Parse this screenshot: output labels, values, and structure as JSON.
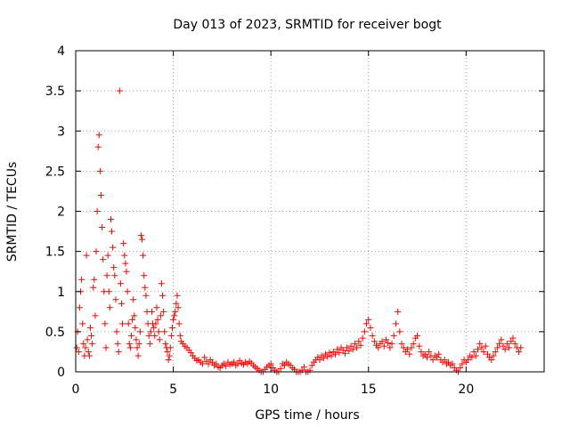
{
  "chart_data": {
    "type": "scatter",
    "title": "Day 013 of 2023, SRMTID for receiver bogt",
    "xlabel": "GPS time / hours",
    "ylabel": "SRMTID / TECUs",
    "xlim": [
      0,
      24
    ],
    "ylim": [
      0,
      4
    ],
    "xticks": [
      0,
      5,
      10,
      15,
      20
    ],
    "xtick_labels": [
      "0",
      "5",
      "10",
      "15",
      "20"
    ],
    "yticks": [
      0,
      0.5,
      1,
      1.5,
      2,
      2.5,
      3,
      3.5,
      4
    ],
    "ytick_labels": [
      "0",
      "0.5",
      "1",
      "1.5",
      "2",
      "2.5",
      "3",
      "3.5",
      "4"
    ],
    "grid": true,
    "marker": "+",
    "color": "#ff0000",
    "series": [
      {
        "name": "SRMTID",
        "points": [
          [
            0.05,
            0.3
          ],
          [
            0.1,
            0.5
          ],
          [
            0.15,
            0.25
          ],
          [
            0.2,
            0.8
          ],
          [
            0.25,
            1.0
          ],
          [
            0.3,
            1.15
          ],
          [
            0.35,
            0.6
          ],
          [
            0.4,
            0.35
          ],
          [
            0.45,
            0.2
          ],
          [
            0.5,
            0.3
          ],
          [
            0.55,
            1.45
          ],
          [
            0.6,
            0.4
          ],
          [
            0.65,
            0.25
          ],
          [
            0.7,
            0.2
          ],
          [
            0.75,
            0.55
          ],
          [
            0.8,
            0.45
          ],
          [
            0.85,
            0.35
          ],
          [
            0.9,
            1.05
          ],
          [
            0.95,
            1.15
          ],
          [
            1.0,
            0.7
          ],
          [
            1.05,
            1.5
          ],
          [
            1.1,
            2.0
          ],
          [
            1.15,
            2.8
          ],
          [
            1.2,
            2.95
          ],
          [
            1.25,
            2.5
          ],
          [
            1.3,
            2.2
          ],
          [
            1.35,
            1.8
          ],
          [
            1.4,
            1.4
          ],
          [
            1.45,
            1.0
          ],
          [
            1.5,
            0.6
          ],
          [
            1.55,
            0.3
          ],
          [
            1.6,
            1.2
          ],
          [
            1.65,
            1.45
          ],
          [
            1.7,
            1.0
          ],
          [
            1.75,
            0.8
          ],
          [
            1.8,
            1.9
          ],
          [
            1.85,
            1.75
          ],
          [
            1.9,
            1.55
          ],
          [
            1.95,
            1.3
          ],
          [
            2.0,
            1.2
          ],
          [
            2.05,
            0.9
          ],
          [
            2.1,
            0.5
          ],
          [
            2.15,
            0.35
          ],
          [
            2.2,
            0.25
          ],
          [
            2.25,
            3.5
          ],
          [
            2.3,
            1.1
          ],
          [
            2.35,
            0.85
          ],
          [
            2.4,
            0.6
          ],
          [
            2.45,
            1.6
          ],
          [
            2.5,
            1.45
          ],
          [
            2.55,
            1.35
          ],
          [
            2.6,
            1.25
          ],
          [
            2.65,
            1.0
          ],
          [
            2.7,
            0.6
          ],
          [
            2.75,
            0.35
          ],
          [
            2.8,
            0.3
          ],
          [
            2.85,
            0.45
          ],
          [
            2.9,
            0.65
          ],
          [
            2.95,
            0.9
          ],
          [
            3.0,
            0.7
          ],
          [
            3.05,
            0.55
          ],
          [
            3.1,
            0.4
          ],
          [
            3.15,
            0.3
          ],
          [
            3.2,
            0.2
          ],
          [
            3.25,
            0.35
          ],
          [
            3.3,
            0.5
          ],
          [
            3.35,
            1.7
          ],
          [
            3.4,
            1.65
          ],
          [
            3.45,
            1.45
          ],
          [
            3.5,
            1.2
          ],
          [
            3.55,
            1.05
          ],
          [
            3.6,
            0.95
          ],
          [
            3.65,
            0.75
          ],
          [
            3.7,
            0.6
          ],
          [
            3.75,
            0.45
          ],
          [
            3.8,
            0.35
          ],
          [
            3.85,
            0.5
          ],
          [
            3.9,
            0.75
          ],
          [
            3.95,
            0.6
          ],
          [
            4.0,
            0.55
          ],
          [
            4.05,
            0.45
          ],
          [
            4.1,
            0.6
          ],
          [
            4.15,
            0.8
          ],
          [
            4.2,
            0.65
          ],
          [
            4.25,
            0.5
          ],
          [
            4.3,
            0.4
          ],
          [
            4.35,
            0.7
          ],
          [
            4.4,
            1.1
          ],
          [
            4.45,
            0.95
          ],
          [
            4.5,
            0.75
          ],
          [
            4.55,
            0.5
          ],
          [
            4.6,
            0.35
          ],
          [
            4.65,
            0.3
          ],
          [
            4.7,
            0.25
          ],
          [
            4.75,
            0.15
          ],
          [
            4.8,
            0.2
          ],
          [
            4.85,
            0.3
          ],
          [
            4.9,
            0.45
          ],
          [
            4.95,
            0.55
          ],
          [
            5.0,
            0.65
          ],
          [
            5.05,
            0.7
          ],
          [
            5.1,
            0.75
          ],
          [
            5.15,
            0.85
          ],
          [
            5.2,
            0.95
          ],
          [
            5.25,
            0.8
          ],
          [
            5.3,
            0.6
          ],
          [
            5.35,
            0.45
          ],
          [
            5.4,
            0.38
          ],
          [
            5.5,
            0.35
          ],
          [
            5.6,
            0.32
          ],
          [
            5.7,
            0.3
          ],
          [
            5.8,
            0.27
          ],
          [
            5.9,
            0.24
          ],
          [
            6.0,
            0.2
          ],
          [
            6.1,
            0.17
          ],
          [
            6.2,
            0.14
          ],
          [
            6.3,
            0.15
          ],
          [
            6.4,
            0.12
          ],
          [
            6.5,
            0.1
          ],
          [
            6.6,
            0.18
          ],
          [
            6.7,
            0.13
          ],
          [
            6.8,
            0.1
          ],
          [
            6.9,
            0.15
          ],
          [
            7.0,
            0.12
          ],
          [
            7.1,
            0.08
          ],
          [
            7.2,
            0.1
          ],
          [
            7.3,
            0.06
          ],
          [
            7.4,
            0.05
          ],
          [
            7.5,
            0.08
          ],
          [
            7.6,
            0.1
          ],
          [
            7.7,
            0.07
          ],
          [
            7.8,
            0.12
          ],
          [
            7.9,
            0.09
          ],
          [
            8.0,
            0.1
          ],
          [
            8.1,
            0.12
          ],
          [
            8.2,
            0.08
          ],
          [
            8.3,
            0.1
          ],
          [
            8.4,
            0.14
          ],
          [
            8.5,
            0.11
          ],
          [
            8.6,
            0.09
          ],
          [
            8.7,
            0.12
          ],
          [
            8.8,
            0.1
          ],
          [
            8.9,
            0.13
          ],
          [
            9.0,
            0.11
          ],
          [
            9.1,
            0.08
          ],
          [
            9.2,
            0.06
          ],
          [
            9.3,
            0.04
          ],
          [
            9.4,
            0.02
          ],
          [
            9.5,
            0.0
          ],
          [
            9.6,
            0.0
          ],
          [
            9.7,
            0.03
          ],
          [
            9.8,
            0.06
          ],
          [
            9.9,
            0.08
          ],
          [
            10.0,
            0.1
          ],
          [
            10.1,
            0.05
          ],
          [
            10.2,
            0.02
          ],
          [
            10.3,
            0.0
          ],
          [
            10.4,
            0.0
          ],
          [
            10.5,
            0.04
          ],
          [
            10.6,
            0.1
          ],
          [
            10.7,
            0.08
          ],
          [
            10.8,
            0.12
          ],
          [
            10.9,
            0.1
          ],
          [
            11.0,
            0.08
          ],
          [
            11.1,
            0.05
          ],
          [
            11.2,
            0.03
          ],
          [
            11.3,
            0.0
          ],
          [
            11.4,
            0.0
          ],
          [
            11.5,
            0.0
          ],
          [
            11.6,
            0.02
          ],
          [
            11.7,
            0.06
          ],
          [
            11.8,
            0.0
          ],
          [
            11.9,
            0.0
          ],
          [
            12.0,
            0.02
          ],
          [
            12.1,
            0.08
          ],
          [
            12.2,
            0.12
          ],
          [
            12.3,
            0.15
          ],
          [
            12.4,
            0.18
          ],
          [
            12.5,
            0.15
          ],
          [
            12.6,
            0.2
          ],
          [
            12.7,
            0.17
          ],
          [
            12.8,
            0.22
          ],
          [
            12.9,
            0.19
          ],
          [
            13.0,
            0.24
          ],
          [
            13.1,
            0.2
          ],
          [
            13.2,
            0.25
          ],
          [
            13.3,
            0.22
          ],
          [
            13.4,
            0.28
          ],
          [
            13.5,
            0.24
          ],
          [
            13.6,
            0.3
          ],
          [
            13.7,
            0.27
          ],
          [
            13.8,
            0.23
          ],
          [
            13.9,
            0.3
          ],
          [
            14.0,
            0.26
          ],
          [
            14.1,
            0.32
          ],
          [
            14.2,
            0.28
          ],
          [
            14.3,
            0.35
          ],
          [
            14.4,
            0.3
          ],
          [
            14.5,
            0.38
          ],
          [
            14.6,
            0.33
          ],
          [
            14.7,
            0.42
          ],
          [
            14.8,
            0.5
          ],
          [
            14.9,
            0.6
          ],
          [
            15.0,
            0.65
          ],
          [
            15.1,
            0.55
          ],
          [
            15.2,
            0.45
          ],
          [
            15.3,
            0.38
          ],
          [
            15.4,
            0.33
          ],
          [
            15.5,
            0.3
          ],
          [
            15.6,
            0.35
          ],
          [
            15.7,
            0.38
          ],
          [
            15.8,
            0.32
          ],
          [
            15.9,
            0.4
          ],
          [
            16.0,
            0.36
          ],
          [
            16.1,
            0.3
          ],
          [
            16.2,
            0.35
          ],
          [
            16.3,
            0.45
          ],
          [
            16.4,
            0.6
          ],
          [
            16.5,
            0.75
          ],
          [
            16.6,
            0.5
          ],
          [
            16.7,
            0.35
          ],
          [
            16.8,
            0.3
          ],
          [
            16.9,
            0.25
          ],
          [
            17.0,
            0.28
          ],
          [
            17.1,
            0.22
          ],
          [
            17.2,
            0.3
          ],
          [
            17.3,
            0.35
          ],
          [
            17.4,
            0.42
          ],
          [
            17.5,
            0.45
          ],
          [
            17.6,
            0.32
          ],
          [
            17.7,
            0.25
          ],
          [
            17.8,
            0.2
          ],
          [
            17.9,
            0.22
          ],
          [
            18.0,
            0.18
          ],
          [
            18.1,
            0.25
          ],
          [
            18.2,
            0.2
          ],
          [
            18.3,
            0.15
          ],
          [
            18.4,
            0.2
          ],
          [
            18.5,
            0.18
          ],
          [
            18.6,
            0.22
          ],
          [
            18.7,
            0.15
          ],
          [
            18.8,
            0.12
          ],
          [
            18.9,
            0.15
          ],
          [
            19.0,
            0.1
          ],
          [
            19.1,
            0.12
          ],
          [
            19.2,
            0.08
          ],
          [
            19.3,
            0.1
          ],
          [
            19.4,
            0.05
          ],
          [
            19.5,
            0.02
          ],
          [
            19.6,
            0.0
          ],
          [
            19.7,
            0.05
          ],
          [
            19.8,
            0.1
          ],
          [
            19.9,
            0.15
          ],
          [
            20.0,
            0.12
          ],
          [
            20.1,
            0.15
          ],
          [
            20.2,
            0.2
          ],
          [
            20.3,
            0.18
          ],
          [
            20.4,
            0.25
          ],
          [
            20.5,
            0.2
          ],
          [
            20.6,
            0.28
          ],
          [
            20.7,
            0.35
          ],
          [
            20.8,
            0.3
          ],
          [
            20.9,
            0.25
          ],
          [
            21.0,
            0.32
          ],
          [
            21.1,
            0.22
          ],
          [
            21.2,
            0.18
          ],
          [
            21.3,
            0.15
          ],
          [
            21.4,
            0.2
          ],
          [
            21.5,
            0.25
          ],
          [
            21.6,
            0.3
          ],
          [
            21.7,
            0.35
          ],
          [
            21.8,
            0.4
          ],
          [
            21.9,
            0.32
          ],
          [
            22.0,
            0.28
          ],
          [
            22.1,
            0.35
          ],
          [
            22.2,
            0.3
          ],
          [
            22.3,
            0.38
          ],
          [
            22.4,
            0.42
          ],
          [
            22.5,
            0.35
          ],
          [
            22.6,
            0.3
          ],
          [
            22.7,
            0.25
          ],
          [
            22.8,
            0.3
          ]
        ]
      }
    ]
  }
}
